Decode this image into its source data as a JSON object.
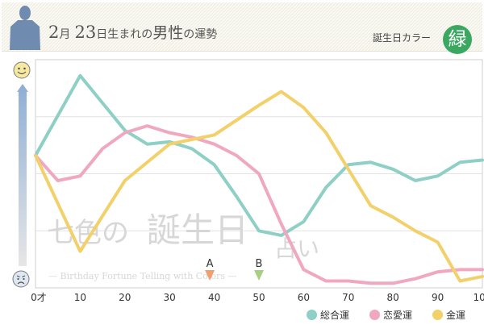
{
  "header": {
    "title_month": "2",
    "title_month_unit": "月",
    "title_day": "23",
    "title_day_unit": "日生まれの",
    "title_gender": "男性",
    "title_suffix": "の運勢",
    "color_label": "誕生日カラー",
    "color_name": "緑",
    "color_hex": "#3aa860"
  },
  "watermark": {
    "main_a": "七色の",
    "main_b": "誕生日",
    "main_c": "占い",
    "sub": "— Birthday Fortune Telling with Colors —"
  },
  "markers": [
    {
      "label": "A",
      "x": 39,
      "color": "#f0a070"
    },
    {
      "label": "B",
      "x": 50,
      "color": "#a8d080"
    }
  ],
  "chart_data": {
    "type": "line",
    "x_tick_labels": [
      "0才",
      "10",
      "20",
      "30",
      "40",
      "50",
      "60",
      "70",
      "80",
      "90",
      "100"
    ],
    "x_ticks": [
      0,
      10,
      20,
      30,
      40,
      50,
      60,
      70,
      80,
      90,
      100
    ],
    "xlim": [
      0,
      100
    ],
    "ylim": [
      0,
      100
    ],
    "grid": true,
    "legend_position": "bottom-right",
    "y_top_icon": "smiley-face-icon",
    "y_bottom_icon": "worried-face-icon",
    "series": [
      {
        "name": "総合運",
        "color": "#8ecfc6",
        "x": [
          0,
          10,
          20,
          25,
          30,
          35,
          40,
          45,
          50,
          55,
          60,
          65,
          70,
          75,
          80,
          85,
          90,
          95,
          100
        ],
        "y": [
          58,
          93,
          69,
          63,
          64,
          61,
          54,
          40,
          25,
          23,
          29,
          44,
          54,
          55,
          52,
          47,
          49,
          55,
          56
        ]
      },
      {
        "name": "恋愛運",
        "color": "#f0a8c0",
        "x": [
          0,
          5,
          10,
          15,
          20,
          25,
          30,
          35,
          40,
          45,
          50,
          55,
          60,
          65,
          70,
          75,
          80,
          85,
          90,
          95,
          100
        ],
        "y": [
          58,
          47,
          49,
          61,
          68,
          71,
          68,
          66,
          63,
          58,
          50,
          28,
          8,
          3,
          3,
          2,
          2,
          4,
          7,
          8,
          8
        ]
      },
      {
        "name": "金運",
        "color": "#f2d06a",
        "x": [
          0,
          10,
          20,
          30,
          40,
          50,
          55,
          60,
          65,
          70,
          75,
          80,
          85,
          90,
          95,
          100
        ],
        "y": [
          58,
          16,
          47,
          63,
          67,
          80,
          86,
          79,
          68,
          52,
          36,
          31,
          25,
          20,
          3,
          5
        ]
      }
    ]
  }
}
